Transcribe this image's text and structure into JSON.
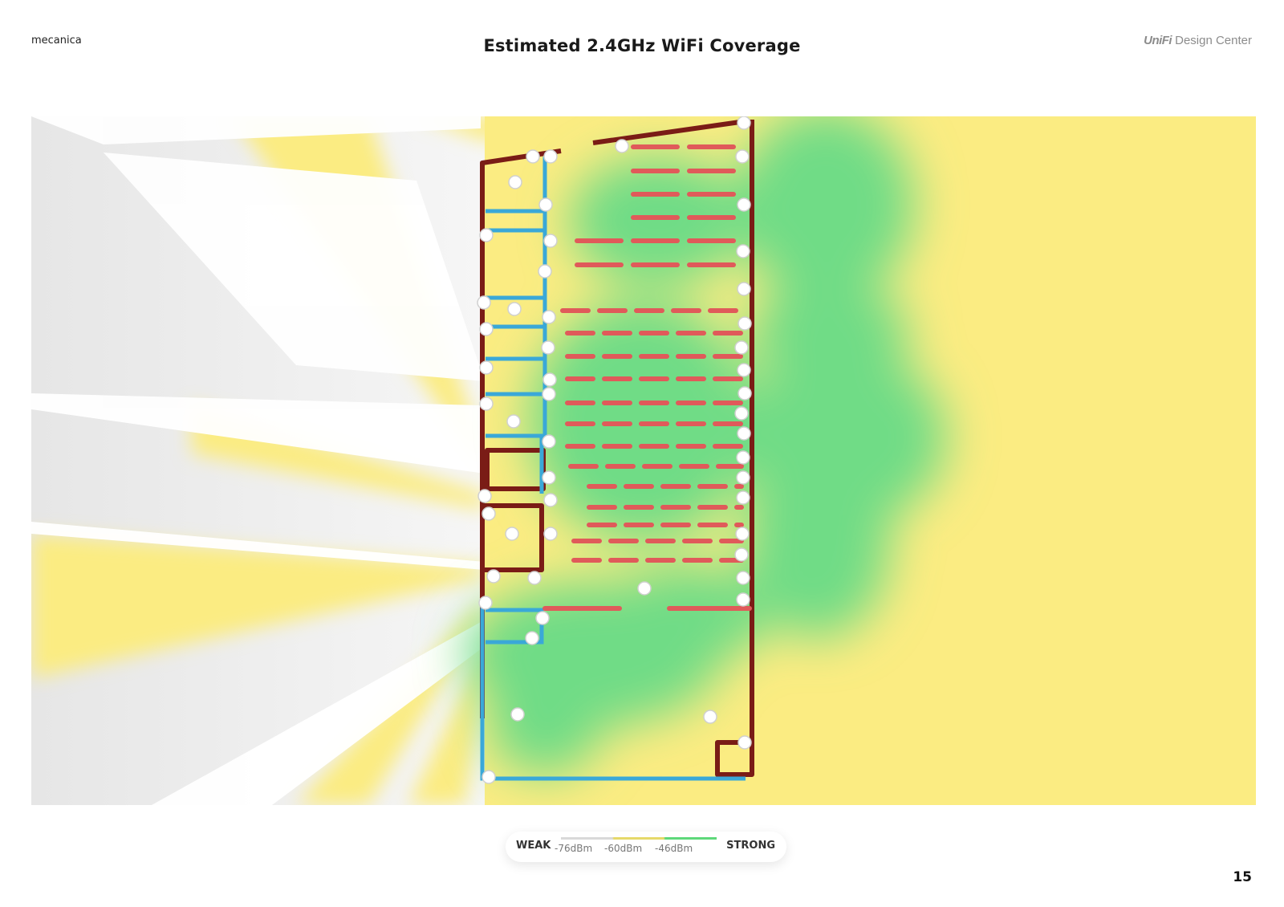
{
  "header": {
    "project": "mecanica",
    "title": "Estimated 2.4GHz WiFi Coverage",
    "brand_logo": "UniFi",
    "brand_text": "Design Center"
  },
  "legend": {
    "weak": "WEAK",
    "strong": "STRONG",
    "ticks": [
      "-76dBm",
      "-60dBm",
      "-46dBm"
    ]
  },
  "colors": {
    "weak": "#d9d9d9",
    "medium": "#fae97a",
    "strong": "#6fdc86",
    "wall_exterior": "#7a1c16",
    "wall_interior": "#3aa8d8",
    "shelving": "#e05a5a"
  },
  "page_number": "15"
}
